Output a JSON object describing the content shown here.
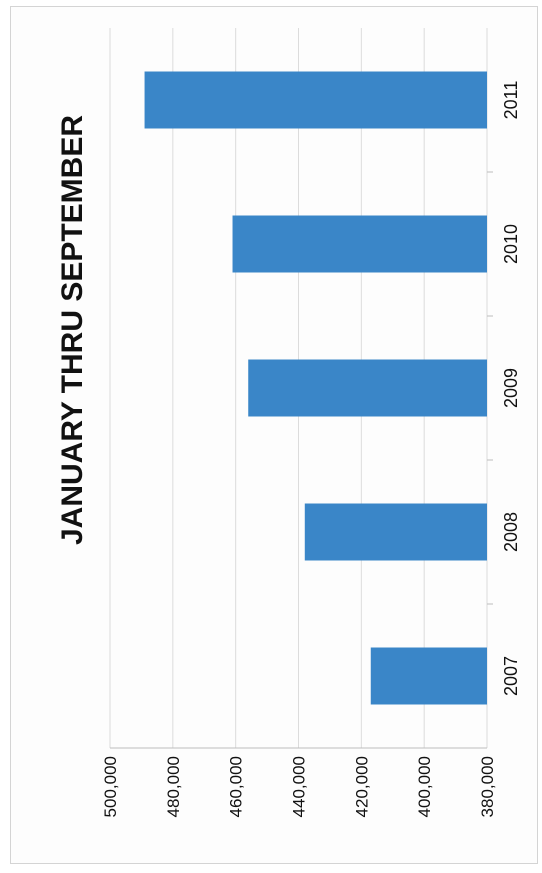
{
  "chart_data": {
    "type": "bar",
    "title": "JANUARY THRU SEPTEMBER",
    "categories": [
      "2007",
      "2008",
      "2009",
      "2010",
      "2011"
    ],
    "values": [
      417000,
      438000,
      456000,
      461000,
      489000
    ],
    "ylim": [
      380000,
      500000
    ],
    "yticks": [
      "380,000",
      "400,000",
      "420,000",
      "440,000",
      "460,000",
      "480,000",
      "500,000"
    ],
    "ytick_values": [
      380000,
      400000,
      420000,
      440000,
      460000,
      480000,
      500000
    ],
    "xlabel": "",
    "ylabel": "",
    "grid": true,
    "orientation": "rotated-90-clockwise",
    "bar_color": "#3a86c8"
  }
}
